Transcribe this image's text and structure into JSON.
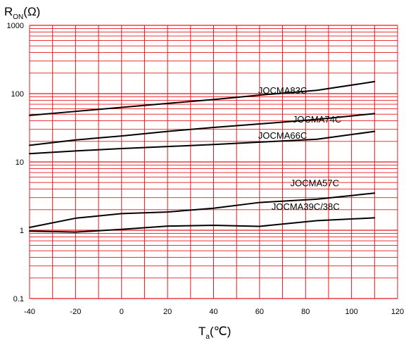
{
  "chart_data": {
    "type": "line",
    "title": "",
    "ylabel": {
      "main": "R",
      "sub": "ON",
      "unit": "(Ω)"
    },
    "xlabel": {
      "main": "T",
      "sub": "a",
      "unit": "(℃)"
    },
    "x_scale": "linear",
    "y_scale": "log",
    "xlim": [
      -40,
      120
    ],
    "ylim": [
      0.1,
      1000
    ],
    "x_ticks": [
      "-40",
      "-20",
      "0",
      "20",
      "40",
      "60",
      "80",
      "100",
      "120"
    ],
    "y_ticks": [
      "0.1",
      "1",
      "10",
      "100",
      "1000"
    ],
    "grid": true,
    "grid_color": "#e8181e",
    "line_color": "#000000",
    "series": [
      {
        "name": "JOCMA83C",
        "x": [
          -40,
          -20,
          0,
          20,
          40,
          60,
          85,
          110
        ],
        "y": [
          48,
          55,
          63,
          72,
          82,
          95,
          112,
          150
        ]
      },
      {
        "name": "JOCMA74C",
        "x": [
          -40,
          -20,
          0,
          20,
          40,
          60,
          85,
          110
        ],
        "y": [
          17.5,
          21,
          24,
          28,
          32,
          36,
          42,
          51
        ]
      },
      {
        "name": "JOCMA66C",
        "x": [
          -40,
          -20,
          0,
          20,
          40,
          60,
          85,
          110
        ],
        "y": [
          13.2,
          14.5,
          15.7,
          16.8,
          18,
          19.5,
          21.5,
          28
        ]
      },
      {
        "name": "JOCMA57C",
        "x": [
          -40,
          -20,
          0,
          20,
          40,
          60,
          85,
          110
        ],
        "y": [
          1.1,
          1.5,
          1.75,
          1.85,
          2.1,
          2.55,
          2.85,
          3.5
        ]
      },
      {
        "name": "JOCMA39C/38C",
        "x": [
          -40,
          -20,
          0,
          20,
          40,
          60,
          85,
          110
        ],
        "y": [
          0.97,
          0.94,
          1.03,
          1.15,
          1.18,
          1.14,
          1.38,
          1.52
        ]
      }
    ]
  }
}
